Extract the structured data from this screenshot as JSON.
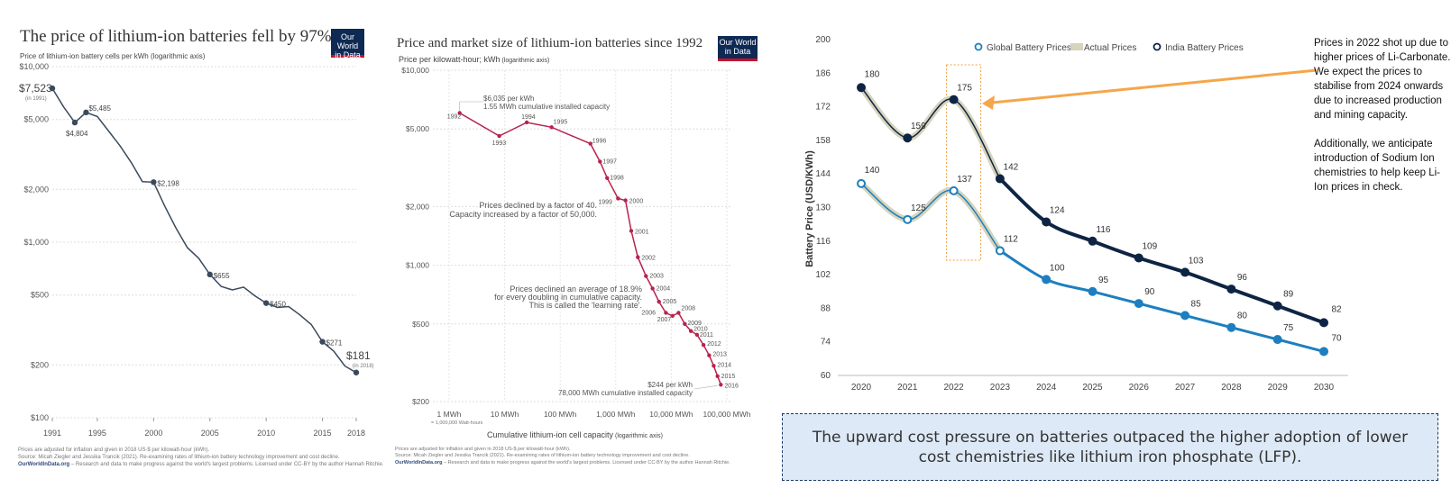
{
  "chart_data": [
    {
      "type": "line",
      "title": "The price of lithium-ion batteries fell by 97%",
      "subtitle": "Price of lithium-ion battery cells per kWh (logarithmic axis)",
      "log_scale_y": true,
      "ylim": [
        100,
        10000
      ],
      "xlim": [
        1991,
        2018
      ],
      "y_ticks": [
        "$10,000",
        "$5,000",
        "$2,000",
        "$1,000",
        "$500",
        "$200",
        "$100"
      ],
      "x_ticks": [
        "1991",
        "1995",
        "2000",
        "2005",
        "2010",
        "2015",
        "2018"
      ],
      "x": [
        1991,
        1992,
        1993,
        1994,
        1995,
        1996,
        1997,
        1998,
        1999,
        2000,
        2001,
        2002,
        2003,
        2004,
        2005,
        2006,
        2007,
        2008,
        2009,
        2010,
        2011,
        2012,
        2013,
        2014,
        2015,
        2016,
        2017,
        2018
      ],
      "y": [
        7523,
        5900,
        4804,
        5485,
        5200,
        4300,
        3550,
        2850,
        2210,
        2198,
        1600,
        1200,
        930,
        810,
        655,
        560,
        535,
        555,
        495,
        450,
        425,
        430,
        385,
        340,
        271,
        240,
        197,
        181
      ],
      "point_labels": [
        {
          "x": 1991,
          "y": 7523,
          "text": "$7,523",
          "note": "(in 1991)"
        },
        {
          "x": 1993,
          "y": 4804,
          "text": "$4,804"
        },
        {
          "x": 1994,
          "y": 5485,
          "text": "$5,485"
        },
        {
          "x": 2000,
          "y": 2198,
          "text": "$2,198"
        },
        {
          "x": 2005,
          "y": 655,
          "text": "$655"
        },
        {
          "x": 2010,
          "y": 450,
          "text": "$450"
        },
        {
          "x": 2015,
          "y": 271,
          "text": "$271"
        },
        {
          "x": 2018,
          "y": 181,
          "text": "$181",
          "note": "(in 2018)"
        }
      ],
      "footnote": "Prices are adjusted for inflation and given in 2018 US-$ per kilowatt-hour (kWh).",
      "source": "Source: Micah Ziegler and Jessika Trancik (2021). Re-examining rates of lithium-ion battery technology improvement and cost decline.",
      "site": "OurWorldInData.org",
      "site_tail": " – Research and data to make progress against the world's largest problems.     Licensed under CC-BY by the author Hannah Ritchie.",
      "logo": [
        "Our World",
        "in Data"
      ],
      "line_color": "#3a4a5c"
    },
    {
      "type": "line",
      "title": "Price and market size of lithium-ion batteries since 1992",
      "ylabel": "Price per kilowatt-hour; kWh (logarithmic axis)",
      "ylabel_main": "Price per kilowatt-hour; kWh",
      "ylabel_note": " (logarithmic axis)",
      "xlabel_main": "Cumulative lithium-ion cell capacity",
      "xlabel_note": " (logarithmic axis)",
      "log_scale_x": true,
      "log_scale_y": true,
      "ylim": [
        200,
        10000
      ],
      "xlim": [
        1,
        100000
      ],
      "y_ticks": [
        "$10,000",
        "$5,000",
        "$2,000",
        "$1,000",
        "$500",
        "$200"
      ],
      "x_ticks": [
        "1 MWh",
        "10 MWh",
        "100 MWh",
        "1,000 MWh",
        "10,000 MWh",
        "100,000 MWh"
      ],
      "x_tick_note": "= 1,000,000 Watt-hours",
      "points": [
        {
          "x": 1.55,
          "y": 6035,
          "label": "1992"
        },
        {
          "x": 8,
          "y": 4600,
          "label": "1993"
        },
        {
          "x": 25,
          "y": 5400,
          "label": "1994"
        },
        {
          "x": 70,
          "y": 5100,
          "label": "1995"
        },
        {
          "x": 350,
          "y": 4200,
          "label": "1996"
        },
        {
          "x": 520,
          "y": 3400,
          "label": "1997"
        },
        {
          "x": 700,
          "y": 2800,
          "label": "1998"
        },
        {
          "x": 1100,
          "y": 2200,
          "label": "1999"
        },
        {
          "x": 1500,
          "y": 2150,
          "label": "2000"
        },
        {
          "x": 1900,
          "y": 1500,
          "label": "2001"
        },
        {
          "x": 2500,
          "y": 1100,
          "label": "2002"
        },
        {
          "x": 3500,
          "y": 880,
          "label": "2003"
        },
        {
          "x": 4600,
          "y": 760,
          "label": "2004"
        },
        {
          "x": 6000,
          "y": 650,
          "label": "2005"
        },
        {
          "x": 8000,
          "y": 570,
          "label": "2006"
        },
        {
          "x": 10500,
          "y": 550,
          "label": "2007"
        },
        {
          "x": 13500,
          "y": 570,
          "label": "2008"
        },
        {
          "x": 17500,
          "y": 500,
          "label": "2009"
        },
        {
          "x": 22500,
          "y": 460,
          "label": "2010"
        },
        {
          "x": 29000,
          "y": 440,
          "label": "2011"
        },
        {
          "x": 38000,
          "y": 390,
          "label": "2012"
        },
        {
          "x": 48000,
          "y": 345,
          "label": "2013"
        },
        {
          "x": 58000,
          "y": 305,
          "label": "2014"
        },
        {
          "x": 68000,
          "y": 270,
          "label": "2015"
        },
        {
          "x": 78000,
          "y": 244,
          "label": "2016"
        }
      ],
      "annotations": {
        "start_a": "$6,035 per kWh",
        "start_b": "1.55 MWh cumulative installed capacity",
        "factor_a": "Prices declined by a factor of 40.",
        "factor_b": "Capacity increased by a factor of 50,000.",
        "rate_a": "Prices declined an average of 18.9%",
        "rate_b": "for every doubling in cumulative capacity.",
        "rate_c": "This is called the 'learning rate'.",
        "end_a": "$244 per kWh",
        "end_b": "78,000 MWh cumulative installed capacity"
      },
      "footnote": "Prices are adjusted for inflation and given in 2018 US-$ per kilowatt-hour (kWh).",
      "source": "Source: Micah Ziegler and Jessika Trancik (2021). Re-examining rates of lithium-ion battery technology improvement and cost decline.",
      "site": "OurWorldInData.org",
      "site_tail": " – Research and data to make progress against the world's largest problems.                 Licensed under CC-BY by the author Hannah Ritchie.",
      "logo": [
        "Our World",
        "in Data"
      ],
      "line_color": "#b8234d"
    },
    {
      "type": "line",
      "ylabel": "Battery Price (USD/KWh)",
      "ylim": [
        60,
        200
      ],
      "y_ticks": [
        200,
        186,
        172,
        158,
        144,
        130,
        116,
        102,
        88,
        74,
        60
      ],
      "categories": [
        "2020",
        "2021",
        "2022",
        "2023",
        "2024",
        "2025",
        "2026",
        "2027",
        "2028",
        "2029",
        "2030"
      ],
      "legend": [
        "Global Battery Prices",
        "Actual Prices",
        "India Battery Prices"
      ],
      "legend_position": "top",
      "series": [
        {
          "name": "India Battery Prices",
          "values": [
            180,
            159,
            175,
            142,
            124,
            116,
            109,
            103,
            96,
            89,
            82
          ],
          "color": "#0e2444"
        },
        {
          "name": "Global Battery Prices",
          "values": [
            140,
            125,
            137,
            112,
            100,
            95,
            90,
            85,
            80,
            75,
            70
          ],
          "color": "#1d7fbf"
        }
      ],
      "actual_prices_through": "2023",
      "actual_color": "#d6d4bd",
      "highlight_year": "2022",
      "highlight_color": "#f0a040",
      "arrow_color": "#f5a64a",
      "callout": [
        "Prices in 2022 shot up due to higher prices of Li-Carbonate. We expect the prices to stabilise from 2024 onwards due to increased production and mining capacity.",
        "Additionally, we anticipate introduction of Sodium Ion chemistries to help keep Li-Ion prices in check."
      ]
    }
  ],
  "takeaway": "The upward cost pressure on batteries outpaced the higher adoption of lower cost chemistries like lithium iron phosphate (LFP)."
}
